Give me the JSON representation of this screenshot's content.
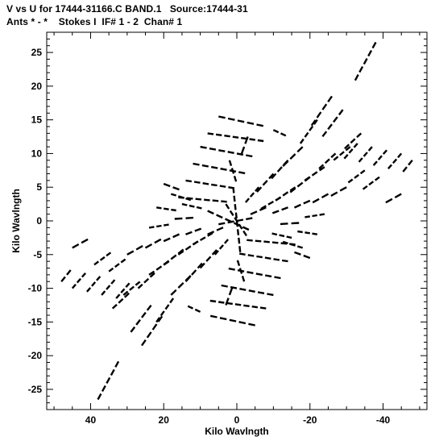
{
  "title_line1": "V vs U for 17444-31166.C BAND.1   Source:17444-31",
  "title_line2": "Ants * - *    Stokes I  IF# 1 - 2  Chan# 1",
  "chart_data": {
    "type": "scatter",
    "title": "V vs U for 17444-31166.C BAND.1   Source:17444-31",
    "subtitle": "Ants * - *    Stokes I  IF# 1 - 2  Chan# 1",
    "xlabel": "Kilo Wavlngth",
    "ylabel": "Kilo Wavlngth",
    "xlim": [
      52,
      -52
    ],
    "ylim": [
      -28,
      28
    ],
    "x_inverted": true,
    "xticks": [
      40,
      20,
      0,
      -20,
      -40
    ],
    "xtick_labels": [
      "40",
      "20",
      "0",
      "-20",
      "-40"
    ],
    "yticks": [
      -25,
      -20,
      -15,
      -10,
      -5,
      0,
      5,
      10,
      15,
      20,
      25
    ],
    "ytick_labels": [
      "-25",
      "-20",
      "-15",
      "-10",
      "-5",
      "0",
      "5",
      "10",
      "15",
      "20",
      "25"
    ],
    "grid": false,
    "marker_color": "#000000",
    "series": [
      {
        "tracks": [
          [
            [
              -38,
              26.5
            ],
            [
              -32,
              20.5
            ]
          ],
          [
            [
              -26,
              18.5
            ],
            [
              -20,
              13.8
            ]
          ],
          [
            [
              -29,
              16.5
            ],
            [
              -23,
              12.2
            ]
          ],
          [
            [
              -22,
              15.0
            ],
            [
              -17,
              11.2
            ]
          ],
          [
            [
              -34,
              13.0
            ],
            [
              -29,
              10.5
            ]
          ],
          [
            [
              -31,
              11.0
            ],
            [
              -26,
              8.8
            ]
          ],
          [
            [
              -27,
              10.0
            ],
            [
              -22,
              7.5
            ]
          ],
          [
            [
              -24,
              8.0
            ],
            [
              -18,
              5.8
            ]
          ],
          [
            [
              -20,
              6.5
            ],
            [
              -14,
              4.0
            ]
          ],
          [
            [
              -16,
              5.0
            ],
            [
              -10,
              2.8
            ]
          ],
          [
            [
              -12,
              3.5
            ],
            [
              -6,
              1.6
            ]
          ],
          [
            [
              -8,
              2.0
            ],
            [
              -3,
              0.8
            ]
          ],
          [
            [
              -18,
              11.0
            ],
            [
              -12,
              7.8
            ]
          ],
          [
            [
              -14,
              9.0
            ],
            [
              -9,
              6.0
            ]
          ],
          [
            [
              -10,
              7.0
            ],
            [
              -5,
              4.0
            ]
          ],
          [
            [
              -6,
              5.0
            ],
            [
              -2,
              2.5
            ]
          ],
          [
            [
              -48,
              9.0
            ],
            [
              -45,
              7.0
            ]
          ],
          [
            [
              -45,
              10.0
            ],
            [
              -41,
              7.5
            ]
          ],
          [
            [
              -41,
              10.5
            ],
            [
              -37,
              8.0
            ]
          ],
          [
            [
              -37,
              11.0
            ],
            [
              -33,
              8.5
            ]
          ],
          [
            [
              -33,
              11.5
            ],
            [
              -29,
              9.0
            ]
          ],
          [
            [
              -45,
              4.0
            ],
            [
              -40,
              2.5
            ]
          ],
          [
            [
              -39,
              6.5
            ],
            [
              -34,
              4.5
            ]
          ],
          [
            [
              -35,
              7.5
            ],
            [
              -30,
              5.5
            ]
          ],
          [
            [
              -30,
              5.0
            ],
            [
              -25,
              3.5
            ]
          ],
          [
            [
              -25,
              4.0
            ],
            [
              -20,
              2.5
            ]
          ],
          [
            [
              -20,
              3.0
            ],
            [
              -15,
              1.8
            ]
          ],
          [
            [
              -14,
              2.0
            ],
            [
              -9,
              1.0
            ]
          ],
          [
            [
              -24,
              1.0
            ],
            [
              -18,
              0.5
            ]
          ],
          [
            [
              -17,
              -0.3
            ],
            [
              -11,
              -0.5
            ]
          ],
          [
            [
              5,
              15.5
            ],
            [
              -8,
              14.0
            ]
          ],
          [
            [
              8,
              13.0
            ],
            [
              -8,
              11.8
            ]
          ],
          [
            [
              10,
              11.0
            ],
            [
              -5,
              9.5
            ]
          ],
          [
            [
              12,
              8.5
            ],
            [
              -3,
              7.0
            ]
          ],
          [
            [
              14,
              6.0
            ],
            [
              0,
              4.8
            ]
          ],
          [
            [
              16,
              3.5
            ],
            [
              2,
              2.8
            ]
          ],
          [
            [
              -10,
              13.5
            ],
            [
              -14,
              12.5
            ]
          ],
          [
            [
              38,
              -26.5
            ],
            [
              32,
              -20.5
            ]
          ],
          [
            [
              26,
              -18.5
            ],
            [
              20,
              -13.8
            ]
          ],
          [
            [
              29,
              -16.5
            ],
            [
              23,
              -12.2
            ]
          ],
          [
            [
              22,
              -15.0
            ],
            [
              17,
              -11.2
            ]
          ],
          [
            [
              34,
              -13.0
            ],
            [
              29,
              -10.5
            ]
          ],
          [
            [
              31,
              -11.0
            ],
            [
              26,
              -8.8
            ]
          ],
          [
            [
              27,
              -10.0
            ],
            [
              22,
              -7.5
            ]
          ],
          [
            [
              24,
              -8.0
            ],
            [
              18,
              -5.8
            ]
          ],
          [
            [
              20,
              -6.5
            ],
            [
              14,
              -4.0
            ]
          ],
          [
            [
              16,
              -5.0
            ],
            [
              10,
              -2.8
            ]
          ],
          [
            [
              12,
              -3.5
            ],
            [
              6,
              -1.6
            ]
          ],
          [
            [
              8,
              -2.0
            ],
            [
              3,
              -0.8
            ]
          ],
          [
            [
              18,
              -11.0
            ],
            [
              12,
              -7.8
            ]
          ],
          [
            [
              14,
              -9.0
            ],
            [
              9,
              -6.0
            ]
          ],
          [
            [
              10,
              -7.0
            ],
            [
              5,
              -4.0
            ]
          ],
          [
            [
              6,
              -5.0
            ],
            [
              2,
              -2.5
            ]
          ],
          [
            [
              48,
              -9.0
            ],
            [
              45,
              -7.0
            ]
          ],
          [
            [
              45,
              -10.0
            ],
            [
              41,
              -7.5
            ]
          ],
          [
            [
              41,
              -10.5
            ],
            [
              37,
              -8.0
            ]
          ],
          [
            [
              37,
              -11.0
            ],
            [
              33,
              -8.5
            ]
          ],
          [
            [
              33,
              -11.5
            ],
            [
              29,
              -9.0
            ]
          ],
          [
            [
              45,
              -4.0
            ],
            [
              40,
              -2.5
            ]
          ],
          [
            [
              39,
              -6.5
            ],
            [
              34,
              -4.5
            ]
          ],
          [
            [
              35,
              -7.5
            ],
            [
              30,
              -5.5
            ]
          ],
          [
            [
              30,
              -5.0
            ],
            [
              25,
              -3.5
            ]
          ],
          [
            [
              25,
              -4.0
            ],
            [
              20,
              -2.5
            ]
          ],
          [
            [
              20,
              -3.0
            ],
            [
              15,
              -1.8
            ]
          ],
          [
            [
              14,
              -2.0
            ],
            [
              9,
              -1.0
            ]
          ],
          [
            [
              24,
              -1.0
            ],
            [
              18,
              -0.5
            ]
          ],
          [
            [
              17,
              0.3
            ],
            [
              11,
              0.5
            ]
          ],
          [
            [
              -5,
              -15.5
            ],
            [
              8,
              -14.0
            ]
          ],
          [
            [
              -8,
              -13.0
            ],
            [
              8,
              -11.8
            ]
          ],
          [
            [
              -10,
              -11.0
            ],
            [
              5,
              -9.5
            ]
          ],
          [
            [
              -12,
              -8.5
            ],
            [
              3,
              -7.0
            ]
          ],
          [
            [
              -14,
              -6.0
            ],
            [
              0,
              -4.8
            ]
          ],
          [
            [
              -16,
              -3.5
            ],
            [
              -2,
              -2.8
            ]
          ],
          [
            [
              10,
              -13.5
            ],
            [
              14,
              -12.5
            ]
          ],
          [
            [
              20,
              5.5
            ],
            [
              15,
              4.5
            ]
          ],
          [
            [
              18,
              4.0
            ],
            [
              12,
              3.0
            ]
          ],
          [
            [
              15,
              2.5
            ],
            [
              9,
              1.8
            ]
          ],
          [
            [
              22,
              2.0
            ],
            [
              16,
              1.5
            ]
          ],
          [
            [
              -20,
              -5.5
            ],
            [
              -15,
              -4.5
            ]
          ],
          [
            [
              -18,
              -4.0
            ],
            [
              -12,
              -3.0
            ]
          ],
          [
            [
              -15,
              -2.5
            ],
            [
              -9,
              -1.8
            ]
          ],
          [
            [
              -22,
              -2.0
            ],
            [
              -16,
              -1.5
            ]
          ],
          [
            [
              5,
              -0.5
            ],
            [
              -5,
              0.5
            ]
          ],
          [
            [
              8,
              1.5
            ],
            [
              -4,
              -1.5
            ]
          ],
          [
            [
              3,
              2.5
            ],
            [
              -3,
              -2.5
            ]
          ],
          [
            [
              1,
              5.0
            ],
            [
              -1,
              -5.0
            ]
          ],
          [
            [
              2,
              9.0
            ],
            [
              0,
              5.5
            ]
          ],
          [
            [
              -2,
              -9.0
            ],
            [
              0,
              -5.5
            ]
          ],
          [
            [
              -3,
              12.5
            ],
            [
              -1,
              9.5
            ]
          ],
          [
            [
              3,
              -12.5
            ],
            [
              1,
              -9.5
            ]
          ]
        ]
      }
    ]
  }
}
